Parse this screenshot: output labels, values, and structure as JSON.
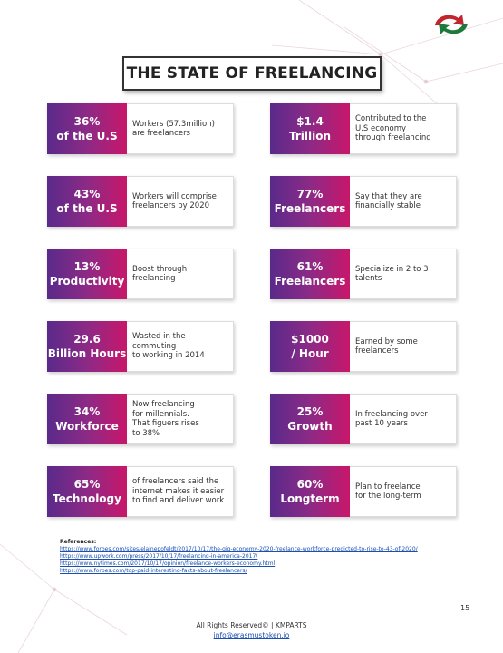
{
  "header": {
    "title": "THE STATE OF FREELANCING"
  },
  "cards": [
    {
      "stat": [
        "36%",
        "of the U.S"
      ],
      "text": [
        "Workers (57.3million)",
        "are freelancers"
      ]
    },
    {
      "stat": [
        "$1.4",
        "Trillion"
      ],
      "text": [
        "Contributed to the",
        "U.S economy",
        "through freelancing"
      ]
    },
    {
      "stat": [
        "43%",
        "of the U.S"
      ],
      "text": [
        "Workers will comprise",
        "freelancers by 2020"
      ]
    },
    {
      "stat": [
        "77%",
        "Freelancers"
      ],
      "text": [
        "Say that they are",
        "financially stable"
      ]
    },
    {
      "stat": [
        "13%",
        "Productivity"
      ],
      "text": [
        "Boost through",
        "freelancing"
      ]
    },
    {
      "stat": [
        "61%",
        "Freelancers"
      ],
      "text": [
        "Specialize in 2 to 3",
        "talents"
      ]
    },
    {
      "stat": [
        "29.6",
        "Billion Hours"
      ],
      "text": [
        "Wasted in the",
        "commuting",
        "to working in 2014"
      ]
    },
    {
      "stat": [
        "$1000",
        "/ Hour"
      ],
      "text": [
        "Earned by some",
        "freelancers"
      ]
    },
    {
      "stat": [
        "34%",
        "Workforce"
      ],
      "text": [
        "Now freelancing",
        "for millennials.",
        "That figuers rises",
        "to 38%"
      ]
    },
    {
      "stat": [
        "25%",
        "Growth"
      ],
      "text": [
        "In freelancing over",
        "past 10 years"
      ]
    },
    {
      "stat": [
        "65%",
        "Technology"
      ],
      "text": [
        "of freelancers said the",
        "internet makes it easier",
        "to find and deliver work"
      ]
    },
    {
      "stat": [
        "60%",
        "Longterm"
      ],
      "text": [
        "Plan to freelance",
        "for the long-term"
      ]
    }
  ],
  "references": {
    "label": "References:",
    "links": [
      "https://www.forbes.com/sites/elainepofeldt/2017/10/17/the-gig-economy-2020-freelance-workforce-predicted-to-rise-to-43-of-2020/",
      "https://www.upwork.com/press/2017/10/17/freelancing-in-america-2017/",
      "https://www.nytimes.com/2017/10/17/opinion/freelance-workers-economy.html",
      "https://www.forbes.com/top-paid-interesting-facts-about-freelancers/"
    ]
  },
  "footer": {
    "page": "15",
    "rights": "All Rights Reserved© | KMPARTS",
    "email": "info@erasmustoken.io"
  }
}
